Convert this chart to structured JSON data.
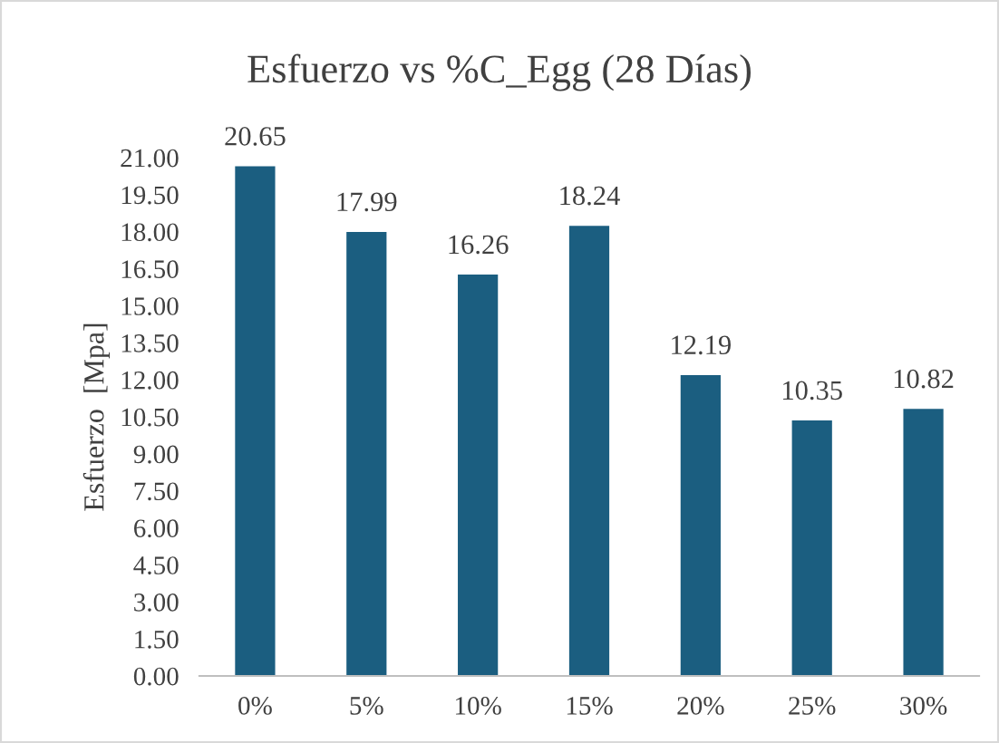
{
  "chart_data": {
    "type": "bar",
    "title": "Esfuerzo vs %C_Egg (28 Días)",
    "ylabel": "Esfuerzo  [Mpa]",
    "categories": [
      "0%",
      "5%",
      "10%",
      "15%",
      "20%",
      "25%",
      "30%"
    ],
    "values": [
      20.65,
      17.99,
      16.26,
      18.24,
      12.19,
      10.35,
      10.82
    ],
    "color": "#1b5e80",
    "ylim": [
      0,
      21
    ],
    "yticks": [
      {
        "value": 0,
        "label": "0.00"
      },
      {
        "value": 1.5,
        "label": "1.50"
      },
      {
        "value": 3,
        "label": "3.00"
      },
      {
        "value": 4.5,
        "label": "4.50"
      },
      {
        "value": 6,
        "label": "6.00"
      },
      {
        "value": 7.5,
        "label": "7.50"
      },
      {
        "value": 9,
        "label": "9.00"
      },
      {
        "value": 10.5,
        "label": "10.50"
      },
      {
        "value": 12,
        "label": "12.00"
      },
      {
        "value": 13.5,
        "label": "13.50"
      },
      {
        "value": 15,
        "label": "15.00"
      },
      {
        "value": 16.5,
        "label": "16.50"
      },
      {
        "value": 18,
        "label": "18.00"
      },
      {
        "value": 19.5,
        "label": "19.50"
      },
      {
        "value": 21,
        "label": "21.00"
      }
    ],
    "data_labels": true,
    "grid": false,
    "legend": false
  }
}
